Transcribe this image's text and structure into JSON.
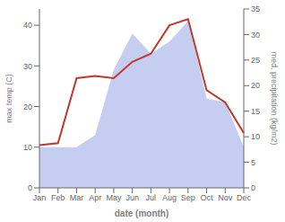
{
  "chart_data": {
    "type": "line",
    "categories": [
      "Jan",
      "Feb",
      "Mar",
      "Apr",
      "May",
      "Jun",
      "Jul",
      "Aug",
      "Sep",
      "Oct",
      "Nov",
      "Dec"
    ],
    "series": [
      {
        "type": "area",
        "color": "#c5cdf0",
        "values": [
          10.0,
          10.0,
          10.0,
          13.0,
          29.0,
          38.0,
          33.0,
          36.0,
          41.0,
          22.0,
          21.0,
          10.0
        ]
      },
      {
        "type": "line",
        "color": "#c0392b",
        "values": [
          10.5,
          11.0,
          27.0,
          27.5,
          27.0,
          31.0,
          33.0,
          40.0,
          41.5,
          24.0,
          21.0,
          13.5
        ]
      }
    ],
    "xlabel": "date (month)",
    "ylabel": "max temp (C)",
    "y2label": "med. precipitation (kg/m2)",
    "ylim": [
      0,
      44
    ],
    "yticks": [
      0,
      10,
      20,
      30,
      40
    ],
    "y2lim": [
      0,
      35
    ],
    "y2ticks": [
      0,
      5,
      10,
      15,
      20,
      25,
      30,
      35
    ],
    "grid": false
  }
}
